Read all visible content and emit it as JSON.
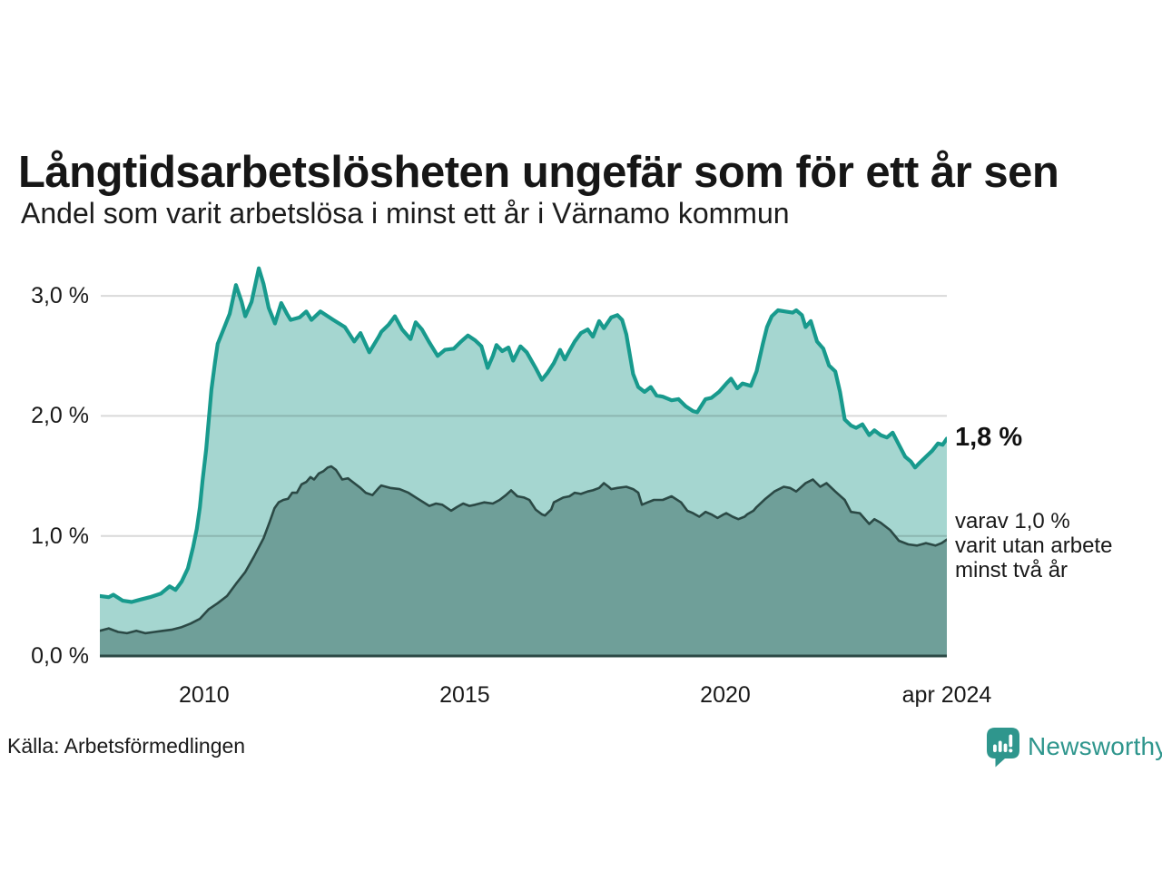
{
  "title": "Långtidsarbetslösheten ungefär som för ett år sen",
  "subtitle": "Andel som varit arbetslösa i minst ett år i Värnamo kommun",
  "source": "Källa: Arbetsförmedlingen",
  "logo": {
    "name": "Newsworthy",
    "icon": "bar-chart-speech-bubble-icon",
    "color": "#2f968d"
  },
  "annotations": {
    "latest_total": "1,8 %",
    "latest_two_years": "varav 1,0 %\nvarit utan arbete\nminst två år"
  },
  "colors": {
    "series1_line": "#189a8d",
    "series1_fill": "#a5d6d0",
    "series2_line": "#2b4945",
    "series2_fill": "#6f9f99",
    "gridline": "rgba(0,0,0,0.15)",
    "text": "#191919"
  },
  "chart_data": {
    "type": "area",
    "title": "Långtidsarbetslösheten ungefär som för ett år sen",
    "subtitle": "Andel som varit arbetslösa i minst ett år i Värnamo kommun",
    "xlabel": "",
    "ylabel": "",
    "grid": "horizontal",
    "legend_position": "none",
    "x_axis": {
      "range": [
        2008.0,
        2024.25
      ],
      "ticks": [
        {
          "label": "2010",
          "t": 2010.0
        },
        {
          "label": "2015",
          "t": 2015.0
        },
        {
          "label": "2020",
          "t": 2020.0
        },
        {
          "label": "apr 2024",
          "t": 2024.25
        }
      ]
    },
    "y_axis": {
      "range": [
        0,
        3.3
      ],
      "unit": "%",
      "ticks": [
        {
          "label": "3,0 %",
          "v": 3.0
        },
        {
          "label": "2,0 %",
          "v": 2.0
        },
        {
          "label": "1,0 %",
          "v": 1.0
        },
        {
          "label": "0,0 %",
          "v": 0.0
        }
      ],
      "gridlines": [
        1.0,
        2.0,
        3.0
      ]
    },
    "series": [
      {
        "name": "Andel arbetslösa minst ett år",
        "latest_value_label": "1,8 %",
        "points": [
          [
            2008.0,
            0.5
          ],
          [
            2008.17,
            0.49
          ],
          [
            2008.26,
            0.51
          ],
          [
            2008.44,
            0.46
          ],
          [
            2008.61,
            0.45
          ],
          [
            2008.78,
            0.47
          ],
          [
            2008.96,
            0.49
          ],
          [
            2009.17,
            0.52
          ],
          [
            2009.34,
            0.58
          ],
          [
            2009.45,
            0.55
          ],
          [
            2009.57,
            0.62
          ],
          [
            2009.69,
            0.73
          ],
          [
            2009.79,
            0.91
          ],
          [
            2009.86,
            1.06
          ],
          [
            2009.92,
            1.24
          ],
          [
            2009.97,
            1.46
          ],
          [
            2010.04,
            1.72
          ],
          [
            2010.09,
            1.97
          ],
          [
            2010.14,
            2.22
          ],
          [
            2010.21,
            2.45
          ],
          [
            2010.26,
            2.6
          ],
          [
            2010.39,
            2.74
          ],
          [
            2010.49,
            2.85
          ],
          [
            2010.61,
            3.09
          ],
          [
            2010.72,
            2.95
          ],
          [
            2010.79,
            2.83
          ],
          [
            2010.91,
            2.95
          ],
          [
            2011.05,
            3.23
          ],
          [
            2011.14,
            3.1
          ],
          [
            2011.24,
            2.9
          ],
          [
            2011.36,
            2.77
          ],
          [
            2011.48,
            2.94
          ],
          [
            2011.59,
            2.85
          ],
          [
            2011.66,
            2.8
          ],
          [
            2011.83,
            2.82
          ],
          [
            2011.96,
            2.87
          ],
          [
            2012.06,
            2.8
          ],
          [
            2012.23,
            2.87
          ],
          [
            2012.48,
            2.8
          ],
          [
            2012.7,
            2.74
          ],
          [
            2012.88,
            2.62
          ],
          [
            2013.0,
            2.69
          ],
          [
            2013.17,
            2.53
          ],
          [
            2013.35,
            2.66
          ],
          [
            2013.4,
            2.7
          ],
          [
            2013.54,
            2.76
          ],
          [
            2013.66,
            2.83
          ],
          [
            2013.8,
            2.72
          ],
          [
            2013.96,
            2.64
          ],
          [
            2014.06,
            2.78
          ],
          [
            2014.18,
            2.72
          ],
          [
            2014.31,
            2.62
          ],
          [
            2014.48,
            2.5
          ],
          [
            2014.62,
            2.55
          ],
          [
            2014.79,
            2.56
          ],
          [
            2014.93,
            2.62
          ],
          [
            2015.06,
            2.67
          ],
          [
            2015.2,
            2.63
          ],
          [
            2015.32,
            2.58
          ],
          [
            2015.44,
            2.4
          ],
          [
            2015.54,
            2.5
          ],
          [
            2015.61,
            2.59
          ],
          [
            2015.72,
            2.54
          ],
          [
            2015.84,
            2.57
          ],
          [
            2015.93,
            2.46
          ],
          [
            2016.07,
            2.58
          ],
          [
            2016.19,
            2.53
          ],
          [
            2016.36,
            2.4
          ],
          [
            2016.48,
            2.3
          ],
          [
            2016.59,
            2.36
          ],
          [
            2016.71,
            2.44
          ],
          [
            2016.83,
            2.55
          ],
          [
            2016.92,
            2.47
          ],
          [
            2017.02,
            2.55
          ],
          [
            2017.11,
            2.62
          ],
          [
            2017.23,
            2.69
          ],
          [
            2017.36,
            2.72
          ],
          [
            2017.46,
            2.66
          ],
          [
            2017.58,
            2.79
          ],
          [
            2017.67,
            2.73
          ],
          [
            2017.81,
            2.82
          ],
          [
            2017.93,
            2.84
          ],
          [
            2018.02,
            2.8
          ],
          [
            2018.1,
            2.68
          ],
          [
            2018.23,
            2.35
          ],
          [
            2018.33,
            2.24
          ],
          [
            2018.45,
            2.2
          ],
          [
            2018.57,
            2.24
          ],
          [
            2018.68,
            2.17
          ],
          [
            2018.8,
            2.16
          ],
          [
            2018.97,
            2.13
          ],
          [
            2019.1,
            2.14
          ],
          [
            2019.24,
            2.08
          ],
          [
            2019.38,
            2.04
          ],
          [
            2019.46,
            2.03
          ],
          [
            2019.62,
            2.14
          ],
          [
            2019.73,
            2.15
          ],
          [
            2019.88,
            2.2
          ],
          [
            2020.02,
            2.27
          ],
          [
            2020.11,
            2.31
          ],
          [
            2020.23,
            2.23
          ],
          [
            2020.33,
            2.27
          ],
          [
            2020.49,
            2.25
          ],
          [
            2020.6,
            2.37
          ],
          [
            2020.72,
            2.6
          ],
          [
            2020.8,
            2.74
          ],
          [
            2020.89,
            2.83
          ],
          [
            2021.01,
            2.88
          ],
          [
            2021.15,
            2.87
          ],
          [
            2021.29,
            2.86
          ],
          [
            2021.36,
            2.88
          ],
          [
            2021.47,
            2.84
          ],
          [
            2021.54,
            2.74
          ],
          [
            2021.64,
            2.79
          ],
          [
            2021.76,
            2.62
          ],
          [
            2021.88,
            2.56
          ],
          [
            2021.99,
            2.42
          ],
          [
            2022.11,
            2.37
          ],
          [
            2022.2,
            2.2
          ],
          [
            2022.29,
            1.97
          ],
          [
            2022.41,
            1.92
          ],
          [
            2022.51,
            1.9
          ],
          [
            2022.63,
            1.93
          ],
          [
            2022.76,
            1.84
          ],
          [
            2022.86,
            1.88
          ],
          [
            2022.98,
            1.84
          ],
          [
            2023.1,
            1.82
          ],
          [
            2023.21,
            1.86
          ],
          [
            2023.33,
            1.76
          ],
          [
            2023.45,
            1.66
          ],
          [
            2023.56,
            1.62
          ],
          [
            2023.64,
            1.57
          ],
          [
            2023.73,
            1.61
          ],
          [
            2023.85,
            1.66
          ],
          [
            2023.97,
            1.71
          ],
          [
            2024.08,
            1.77
          ],
          [
            2024.17,
            1.76
          ],
          [
            2024.25,
            1.81
          ]
        ]
      },
      {
        "name": "varav arbetslösa minst två år",
        "latest_value_label": "1,0 %",
        "points": [
          [
            2008.0,
            0.21
          ],
          [
            2008.17,
            0.23
          ],
          [
            2008.35,
            0.2
          ],
          [
            2008.52,
            0.19
          ],
          [
            2008.7,
            0.21
          ],
          [
            2008.87,
            0.19
          ],
          [
            2009.05,
            0.2
          ],
          [
            2009.22,
            0.21
          ],
          [
            2009.39,
            0.22
          ],
          [
            2009.57,
            0.24
          ],
          [
            2009.74,
            0.27
          ],
          [
            2009.92,
            0.31
          ],
          [
            2010.09,
            0.39
          ],
          [
            2010.26,
            0.44
          ],
          [
            2010.44,
            0.5
          ],
          [
            2010.61,
            0.6
          ],
          [
            2010.79,
            0.7
          ],
          [
            2010.96,
            0.83
          ],
          [
            2011.14,
            0.98
          ],
          [
            2011.26,
            1.12
          ],
          [
            2011.35,
            1.23
          ],
          [
            2011.43,
            1.28
          ],
          [
            2011.52,
            1.3
          ],
          [
            2011.61,
            1.31
          ],
          [
            2011.69,
            1.36
          ],
          [
            2011.78,
            1.36
          ],
          [
            2011.87,
            1.43
          ],
          [
            2011.96,
            1.45
          ],
          [
            2012.04,
            1.49
          ],
          [
            2012.11,
            1.47
          ],
          [
            2012.2,
            1.52
          ],
          [
            2012.29,
            1.54
          ],
          [
            2012.37,
            1.57
          ],
          [
            2012.44,
            1.58
          ],
          [
            2012.53,
            1.55
          ],
          [
            2012.65,
            1.47
          ],
          [
            2012.76,
            1.48
          ],
          [
            2012.88,
            1.44
          ],
          [
            2013.0,
            1.4
          ],
          [
            2013.1,
            1.36
          ],
          [
            2013.23,
            1.34
          ],
          [
            2013.35,
            1.4
          ],
          [
            2013.4,
            1.42
          ],
          [
            2013.57,
            1.4
          ],
          [
            2013.75,
            1.39
          ],
          [
            2013.92,
            1.36
          ],
          [
            2014.1,
            1.31
          ],
          [
            2014.32,
            1.25
          ],
          [
            2014.45,
            1.27
          ],
          [
            2014.57,
            1.26
          ],
          [
            2014.74,
            1.21
          ],
          [
            2014.85,
            1.24
          ],
          [
            2014.97,
            1.27
          ],
          [
            2015.09,
            1.25
          ],
          [
            2015.2,
            1.26
          ],
          [
            2015.37,
            1.28
          ],
          [
            2015.54,
            1.27
          ],
          [
            2015.67,
            1.3
          ],
          [
            2015.79,
            1.34
          ],
          [
            2015.89,
            1.38
          ],
          [
            2016.01,
            1.33
          ],
          [
            2016.14,
            1.32
          ],
          [
            2016.24,
            1.3
          ],
          [
            2016.36,
            1.22
          ],
          [
            2016.48,
            1.18
          ],
          [
            2016.54,
            1.17
          ],
          [
            2016.66,
            1.22
          ],
          [
            2016.71,
            1.28
          ],
          [
            2016.89,
            1.32
          ],
          [
            2017.01,
            1.33
          ],
          [
            2017.11,
            1.36
          ],
          [
            2017.23,
            1.35
          ],
          [
            2017.36,
            1.37
          ],
          [
            2017.46,
            1.38
          ],
          [
            2017.58,
            1.4
          ],
          [
            2017.67,
            1.44
          ],
          [
            2017.76,
            1.41
          ],
          [
            2017.81,
            1.39
          ],
          [
            2017.93,
            1.4
          ],
          [
            2018.1,
            1.41
          ],
          [
            2018.23,
            1.39
          ],
          [
            2018.33,
            1.36
          ],
          [
            2018.4,
            1.26
          ],
          [
            2018.51,
            1.28
          ],
          [
            2018.63,
            1.3
          ],
          [
            2018.8,
            1.3
          ],
          [
            2018.97,
            1.33
          ],
          [
            2019.15,
            1.28
          ],
          [
            2019.27,
            1.21
          ],
          [
            2019.38,
            1.19
          ],
          [
            2019.5,
            1.16
          ],
          [
            2019.62,
            1.2
          ],
          [
            2019.73,
            1.18
          ],
          [
            2019.85,
            1.15
          ],
          [
            2019.97,
            1.18
          ],
          [
            2020.02,
            1.19
          ],
          [
            2020.14,
            1.16
          ],
          [
            2020.25,
            1.14
          ],
          [
            2020.37,
            1.16
          ],
          [
            2020.42,
            1.18
          ],
          [
            2020.54,
            1.21
          ],
          [
            2020.6,
            1.24
          ],
          [
            2020.77,
            1.31
          ],
          [
            2020.94,
            1.37
          ],
          [
            2021.12,
            1.41
          ],
          [
            2021.24,
            1.4
          ],
          [
            2021.36,
            1.37
          ],
          [
            2021.54,
            1.44
          ],
          [
            2021.68,
            1.47
          ],
          [
            2021.82,
            1.41
          ],
          [
            2021.94,
            1.44
          ],
          [
            2022.11,
            1.37
          ],
          [
            2022.29,
            1.3
          ],
          [
            2022.41,
            1.2
          ],
          [
            2022.58,
            1.19
          ],
          [
            2022.76,
            1.1
          ],
          [
            2022.86,
            1.14
          ],
          [
            2022.98,
            1.11
          ],
          [
            2023.16,
            1.05
          ],
          [
            2023.33,
            0.96
          ],
          [
            2023.51,
            0.93
          ],
          [
            2023.68,
            0.92
          ],
          [
            2023.85,
            0.94
          ],
          [
            2024.03,
            0.92
          ],
          [
            2024.15,
            0.94
          ],
          [
            2024.25,
            0.97
          ]
        ]
      }
    ]
  }
}
